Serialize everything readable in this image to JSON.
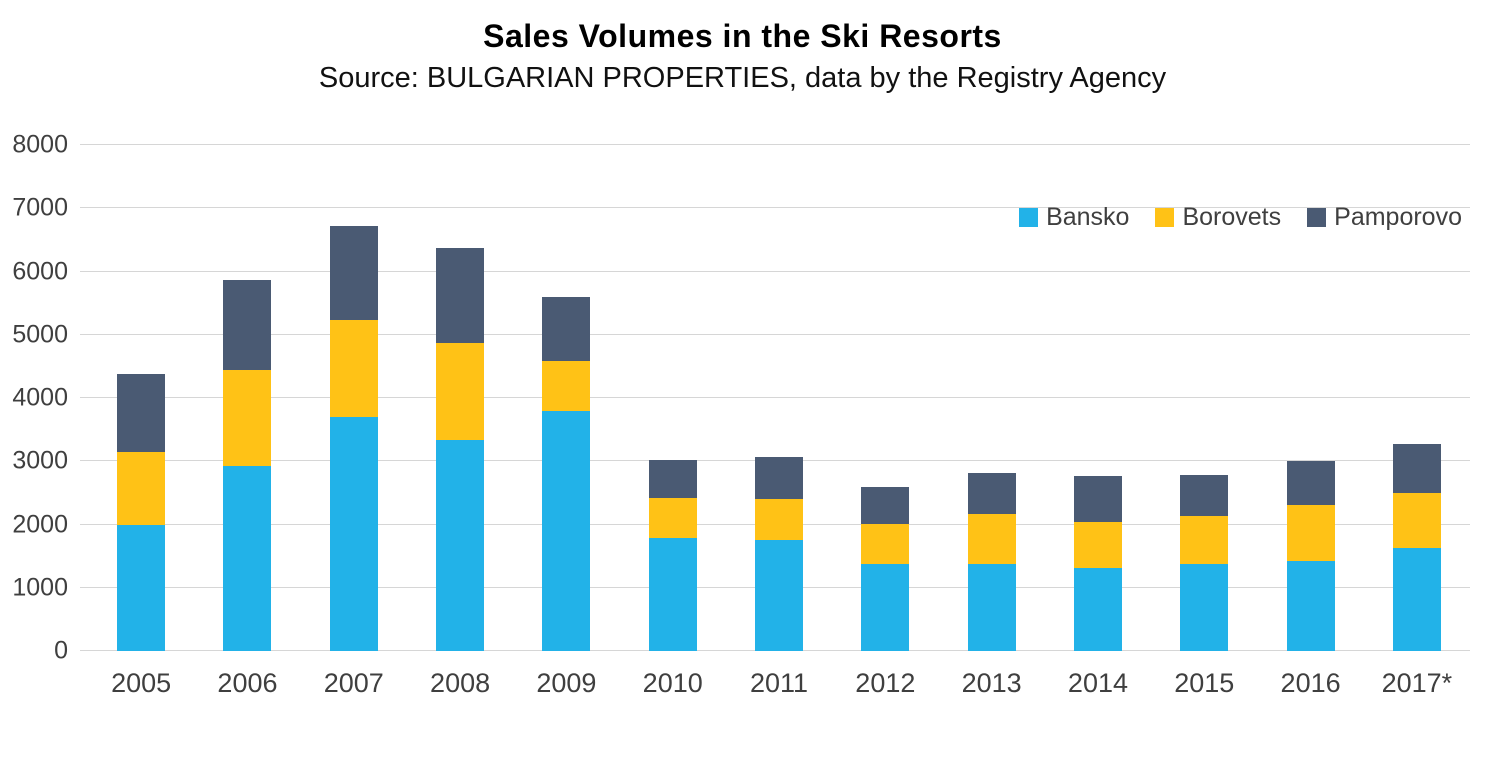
{
  "chart_data": {
    "type": "bar",
    "stacked": true,
    "title": "Sales Volumes in the Ski Resorts",
    "subtitle": "Source: BULGARIAN PROPERTIES, data by the Registry Agency",
    "categories": [
      "2005",
      "2006",
      "2007",
      "2008",
      "2009",
      "2010",
      "2011",
      "2012",
      "2013",
      "2014",
      "2015",
      "2016",
      "2017*"
    ],
    "series": [
      {
        "name": "Bansko",
        "color": "#22B2E8",
        "values": [
          2000,
          2920,
          3700,
          3330,
          3800,
          1780,
          1760,
          1370,
          1370,
          1320,
          1370,
          1420,
          1630
        ]
      },
      {
        "name": "Borovets",
        "color": "#FFC216",
        "values": [
          1150,
          1520,
          1530,
          1540,
          780,
          640,
          650,
          640,
          790,
          720,
          760,
          890,
          870
        ]
      },
      {
        "name": "Pamporovo",
        "color": "#4A5A73",
        "values": [
          1230,
          1430,
          1490,
          1510,
          1010,
          600,
          650,
          580,
          650,
          720,
          660,
          690,
          780
        ]
      }
    ],
    "ylim": [
      0,
      8000
    ],
    "ytick_step": 1000,
    "grid": "horizontal",
    "legend_position": "top-right",
    "xlabel": "",
    "ylabel": ""
  },
  "colors": {
    "grid": "#D6D6D6",
    "axis_text": "#3F3F3F",
    "title": "#000000"
  }
}
